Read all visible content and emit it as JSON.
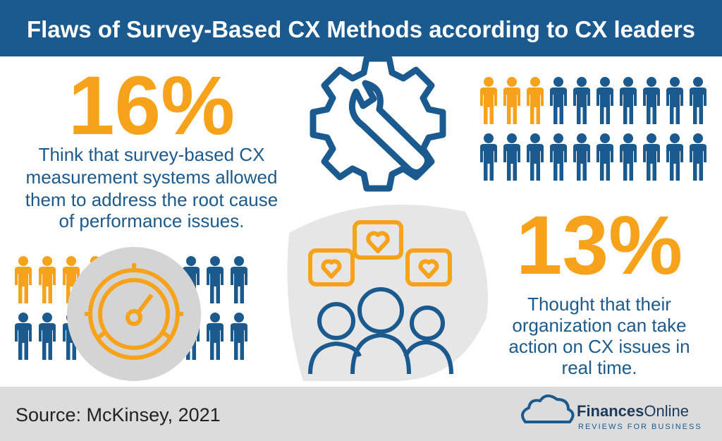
{
  "header": {
    "title": "Flaws of Survey-Based CX Methods according to CX leaders"
  },
  "stats": [
    {
      "figure": "16%",
      "lines": [
        "Think that survey-based CX",
        "measurement systems allowed",
        "them to address the root cause",
        "of performance issues."
      ]
    },
    {
      "figure": "13%",
      "lines": [
        "Thought that their",
        "organization can take",
        "action on CX issues in",
        "real time."
      ]
    }
  ],
  "footer": {
    "source": "Source: McKinsey, 2021",
    "brand_bold": "Finances",
    "brand_light": "Online",
    "tagline": "REVIEWS FOR BUSINESS"
  }
}
